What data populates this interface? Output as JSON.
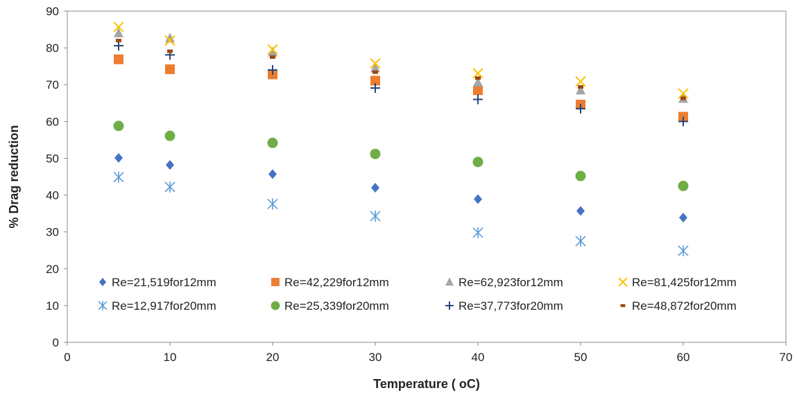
{
  "chart_data": {
    "type": "scatter",
    "title": "",
    "xlabel": "Temperature ( oC)",
    "ylabel": "% Drag reduction",
    "xlim": [
      0,
      70
    ],
    "ylim": [
      0,
      90
    ],
    "x_ticks": [
      0,
      10,
      20,
      30,
      40,
      50,
      60,
      70
    ],
    "y_ticks": [
      0,
      10,
      20,
      30,
      40,
      50,
      60,
      70,
      80,
      90
    ],
    "grid": false,
    "legend_placement": "inside-bottom",
    "x": [
      5,
      10,
      20,
      30,
      40,
      50,
      60
    ],
    "series": [
      {
        "name": "Re=21,519for12mm",
        "marker": "diamond",
        "color": "#4472C4",
        "values": [
          50.1,
          48.2,
          45.7,
          42.0,
          38.9,
          35.7,
          33.9
        ]
      },
      {
        "name": "Re=42,229for12mm",
        "marker": "square",
        "color": "#ED7D31",
        "values": [
          76.9,
          74.2,
          72.8,
          71.1,
          68.5,
          64.6,
          61.3
        ]
      },
      {
        "name": "Re=62,923for12mm",
        "marker": "triangle",
        "color": "#A5A5A5",
        "values": [
          84.0,
          82.6,
          78.8,
          74.5,
          70.6,
          68.5,
          66.2
        ]
      },
      {
        "name": "Re=81,425for12mm",
        "marker": "x",
        "color": "#FFC000",
        "values": [
          85.7,
          82.0,
          79.6,
          75.8,
          73.1,
          70.9,
          67.6
        ]
      },
      {
        "name": "Re=12,917for20mm",
        "marker": "star",
        "color": "#5B9BD5",
        "values": [
          44.9,
          42.2,
          37.6,
          34.3,
          29.8,
          27.5,
          24.9
        ]
      },
      {
        "name": "Re=25,339for20mm",
        "marker": "circle",
        "color": "#70AD47",
        "values": [
          58.8,
          56.1,
          54.2,
          51.2,
          49.0,
          45.2,
          42.5
        ]
      },
      {
        "name": "Re=37,773for20mm",
        "marker": "plus",
        "color": "#264478",
        "values": [
          80.6,
          78.1,
          74.0,
          69.1,
          66.0,
          63.5,
          60.0
        ]
      },
      {
        "name": "Re=48,872for20mm",
        "marker": "dash",
        "color": "#9E480E",
        "values": [
          82.0,
          79.1,
          77.5,
          73.4,
          71.8,
          69.4,
          66.3
        ]
      }
    ]
  }
}
